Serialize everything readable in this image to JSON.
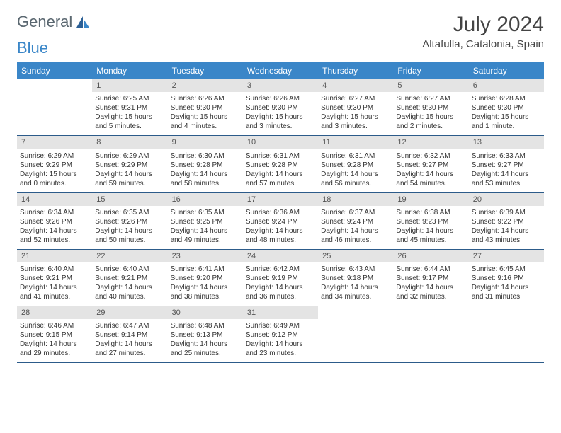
{
  "logo": {
    "text1": "General",
    "text2": "Blue"
  },
  "title": "July 2024",
  "location": "Altafulla, Catalonia, Spain",
  "weekdays": [
    "Sunday",
    "Monday",
    "Tuesday",
    "Wednesday",
    "Thursday",
    "Friday",
    "Saturday"
  ],
  "colors": {
    "header_blue": "#3a86c8",
    "border_blue": "#2c5b8a",
    "daynum_bg": "#e4e4e4",
    "text": "#333333"
  },
  "weeks": [
    [
      {
        "day": "",
        "lines": []
      },
      {
        "day": "1",
        "lines": [
          "Sunrise: 6:25 AM",
          "Sunset: 9:31 PM",
          "Daylight: 15 hours",
          "and 5 minutes."
        ]
      },
      {
        "day": "2",
        "lines": [
          "Sunrise: 6:26 AM",
          "Sunset: 9:30 PM",
          "Daylight: 15 hours",
          "and 4 minutes."
        ]
      },
      {
        "day": "3",
        "lines": [
          "Sunrise: 6:26 AM",
          "Sunset: 9:30 PM",
          "Daylight: 15 hours",
          "and 3 minutes."
        ]
      },
      {
        "day": "4",
        "lines": [
          "Sunrise: 6:27 AM",
          "Sunset: 9:30 PM",
          "Daylight: 15 hours",
          "and 3 minutes."
        ]
      },
      {
        "day": "5",
        "lines": [
          "Sunrise: 6:27 AM",
          "Sunset: 9:30 PM",
          "Daylight: 15 hours",
          "and 2 minutes."
        ]
      },
      {
        "day": "6",
        "lines": [
          "Sunrise: 6:28 AM",
          "Sunset: 9:30 PM",
          "Daylight: 15 hours",
          "and 1 minute."
        ]
      }
    ],
    [
      {
        "day": "7",
        "lines": [
          "Sunrise: 6:29 AM",
          "Sunset: 9:29 PM",
          "Daylight: 15 hours",
          "and 0 minutes."
        ]
      },
      {
        "day": "8",
        "lines": [
          "Sunrise: 6:29 AM",
          "Sunset: 9:29 PM",
          "Daylight: 14 hours",
          "and 59 minutes."
        ]
      },
      {
        "day": "9",
        "lines": [
          "Sunrise: 6:30 AM",
          "Sunset: 9:28 PM",
          "Daylight: 14 hours",
          "and 58 minutes."
        ]
      },
      {
        "day": "10",
        "lines": [
          "Sunrise: 6:31 AM",
          "Sunset: 9:28 PM",
          "Daylight: 14 hours",
          "and 57 minutes."
        ]
      },
      {
        "day": "11",
        "lines": [
          "Sunrise: 6:31 AM",
          "Sunset: 9:28 PM",
          "Daylight: 14 hours",
          "and 56 minutes."
        ]
      },
      {
        "day": "12",
        "lines": [
          "Sunrise: 6:32 AM",
          "Sunset: 9:27 PM",
          "Daylight: 14 hours",
          "and 54 minutes."
        ]
      },
      {
        "day": "13",
        "lines": [
          "Sunrise: 6:33 AM",
          "Sunset: 9:27 PM",
          "Daylight: 14 hours",
          "and 53 minutes."
        ]
      }
    ],
    [
      {
        "day": "14",
        "lines": [
          "Sunrise: 6:34 AM",
          "Sunset: 9:26 PM",
          "Daylight: 14 hours",
          "and 52 minutes."
        ]
      },
      {
        "day": "15",
        "lines": [
          "Sunrise: 6:35 AM",
          "Sunset: 9:26 PM",
          "Daylight: 14 hours",
          "and 50 minutes."
        ]
      },
      {
        "day": "16",
        "lines": [
          "Sunrise: 6:35 AM",
          "Sunset: 9:25 PM",
          "Daylight: 14 hours",
          "and 49 minutes."
        ]
      },
      {
        "day": "17",
        "lines": [
          "Sunrise: 6:36 AM",
          "Sunset: 9:24 PM",
          "Daylight: 14 hours",
          "and 48 minutes."
        ]
      },
      {
        "day": "18",
        "lines": [
          "Sunrise: 6:37 AM",
          "Sunset: 9:24 PM",
          "Daylight: 14 hours",
          "and 46 minutes."
        ]
      },
      {
        "day": "19",
        "lines": [
          "Sunrise: 6:38 AM",
          "Sunset: 9:23 PM",
          "Daylight: 14 hours",
          "and 45 minutes."
        ]
      },
      {
        "day": "20",
        "lines": [
          "Sunrise: 6:39 AM",
          "Sunset: 9:22 PM",
          "Daylight: 14 hours",
          "and 43 minutes."
        ]
      }
    ],
    [
      {
        "day": "21",
        "lines": [
          "Sunrise: 6:40 AM",
          "Sunset: 9:21 PM",
          "Daylight: 14 hours",
          "and 41 minutes."
        ]
      },
      {
        "day": "22",
        "lines": [
          "Sunrise: 6:40 AM",
          "Sunset: 9:21 PM",
          "Daylight: 14 hours",
          "and 40 minutes."
        ]
      },
      {
        "day": "23",
        "lines": [
          "Sunrise: 6:41 AM",
          "Sunset: 9:20 PM",
          "Daylight: 14 hours",
          "and 38 minutes."
        ]
      },
      {
        "day": "24",
        "lines": [
          "Sunrise: 6:42 AM",
          "Sunset: 9:19 PM",
          "Daylight: 14 hours",
          "and 36 minutes."
        ]
      },
      {
        "day": "25",
        "lines": [
          "Sunrise: 6:43 AM",
          "Sunset: 9:18 PM",
          "Daylight: 14 hours",
          "and 34 minutes."
        ]
      },
      {
        "day": "26",
        "lines": [
          "Sunrise: 6:44 AM",
          "Sunset: 9:17 PM",
          "Daylight: 14 hours",
          "and 32 minutes."
        ]
      },
      {
        "day": "27",
        "lines": [
          "Sunrise: 6:45 AM",
          "Sunset: 9:16 PM",
          "Daylight: 14 hours",
          "and 31 minutes."
        ]
      }
    ],
    [
      {
        "day": "28",
        "lines": [
          "Sunrise: 6:46 AM",
          "Sunset: 9:15 PM",
          "Daylight: 14 hours",
          "and 29 minutes."
        ]
      },
      {
        "day": "29",
        "lines": [
          "Sunrise: 6:47 AM",
          "Sunset: 9:14 PM",
          "Daylight: 14 hours",
          "and 27 minutes."
        ]
      },
      {
        "day": "30",
        "lines": [
          "Sunrise: 6:48 AM",
          "Sunset: 9:13 PM",
          "Daylight: 14 hours",
          "and 25 minutes."
        ]
      },
      {
        "day": "31",
        "lines": [
          "Sunrise: 6:49 AM",
          "Sunset: 9:12 PM",
          "Daylight: 14 hours",
          "and 23 minutes."
        ]
      },
      {
        "day": "",
        "lines": []
      },
      {
        "day": "",
        "lines": []
      },
      {
        "day": "",
        "lines": []
      }
    ]
  ]
}
